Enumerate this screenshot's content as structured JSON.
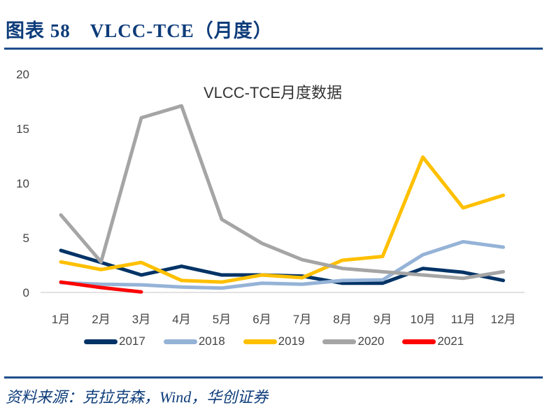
{
  "figure": {
    "title": "图表 58　VLCC-TCE（月度）",
    "source": "资料来源：克拉克森，Wind，华创证券"
  },
  "chart_data": {
    "type": "line",
    "title": "VLCC-TCE月度数据",
    "xlabel": "",
    "ylabel": "",
    "ylim": [
      0,
      20
    ],
    "yticks": [
      0,
      5,
      10,
      15,
      20
    ],
    "categories": [
      "1月",
      "2月",
      "3月",
      "4月",
      "5月",
      "6月",
      "7月",
      "8月",
      "9月",
      "10月",
      "11月",
      "12月"
    ],
    "grid": false,
    "legend_position": "bottom",
    "series": [
      {
        "name": "2017",
        "color": "#003366",
        "values": [
          3.85,
          2.75,
          1.6,
          2.4,
          1.6,
          1.6,
          1.5,
          0.85,
          0.85,
          2.2,
          1.85,
          1.1
        ]
      },
      {
        "name": "2018",
        "color": "#95b3d7",
        "values": [
          0.9,
          0.75,
          0.7,
          0.5,
          0.4,
          0.85,
          0.75,
          1.1,
          1.15,
          3.45,
          4.65,
          4.15
        ]
      },
      {
        "name": "2019",
        "color": "#ffc000",
        "values": [
          2.8,
          2.1,
          2.75,
          1.1,
          0.95,
          1.6,
          1.35,
          2.95,
          3.3,
          12.4,
          7.75,
          8.9
        ]
      },
      {
        "name": "2020",
        "color": "#a5a5a5",
        "values": [
          7.1,
          2.8,
          16.0,
          17.1,
          6.7,
          4.5,
          3.0,
          2.2,
          1.9,
          1.6,
          1.3,
          1.9
        ]
      },
      {
        "name": "2021",
        "color": "#ff0000",
        "values": [
          0.95,
          0.45,
          0.05
        ]
      }
    ]
  }
}
